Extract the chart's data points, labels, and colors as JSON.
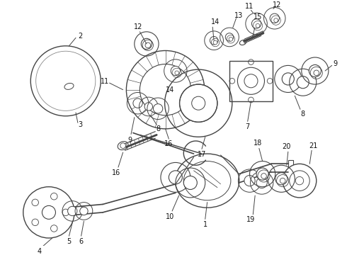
{
  "bg_color": "#ffffff",
  "line_color": "#444444",
  "label_color": "#111111",
  "figsize": [
    4.9,
    3.6
  ],
  "dpi": 100
}
